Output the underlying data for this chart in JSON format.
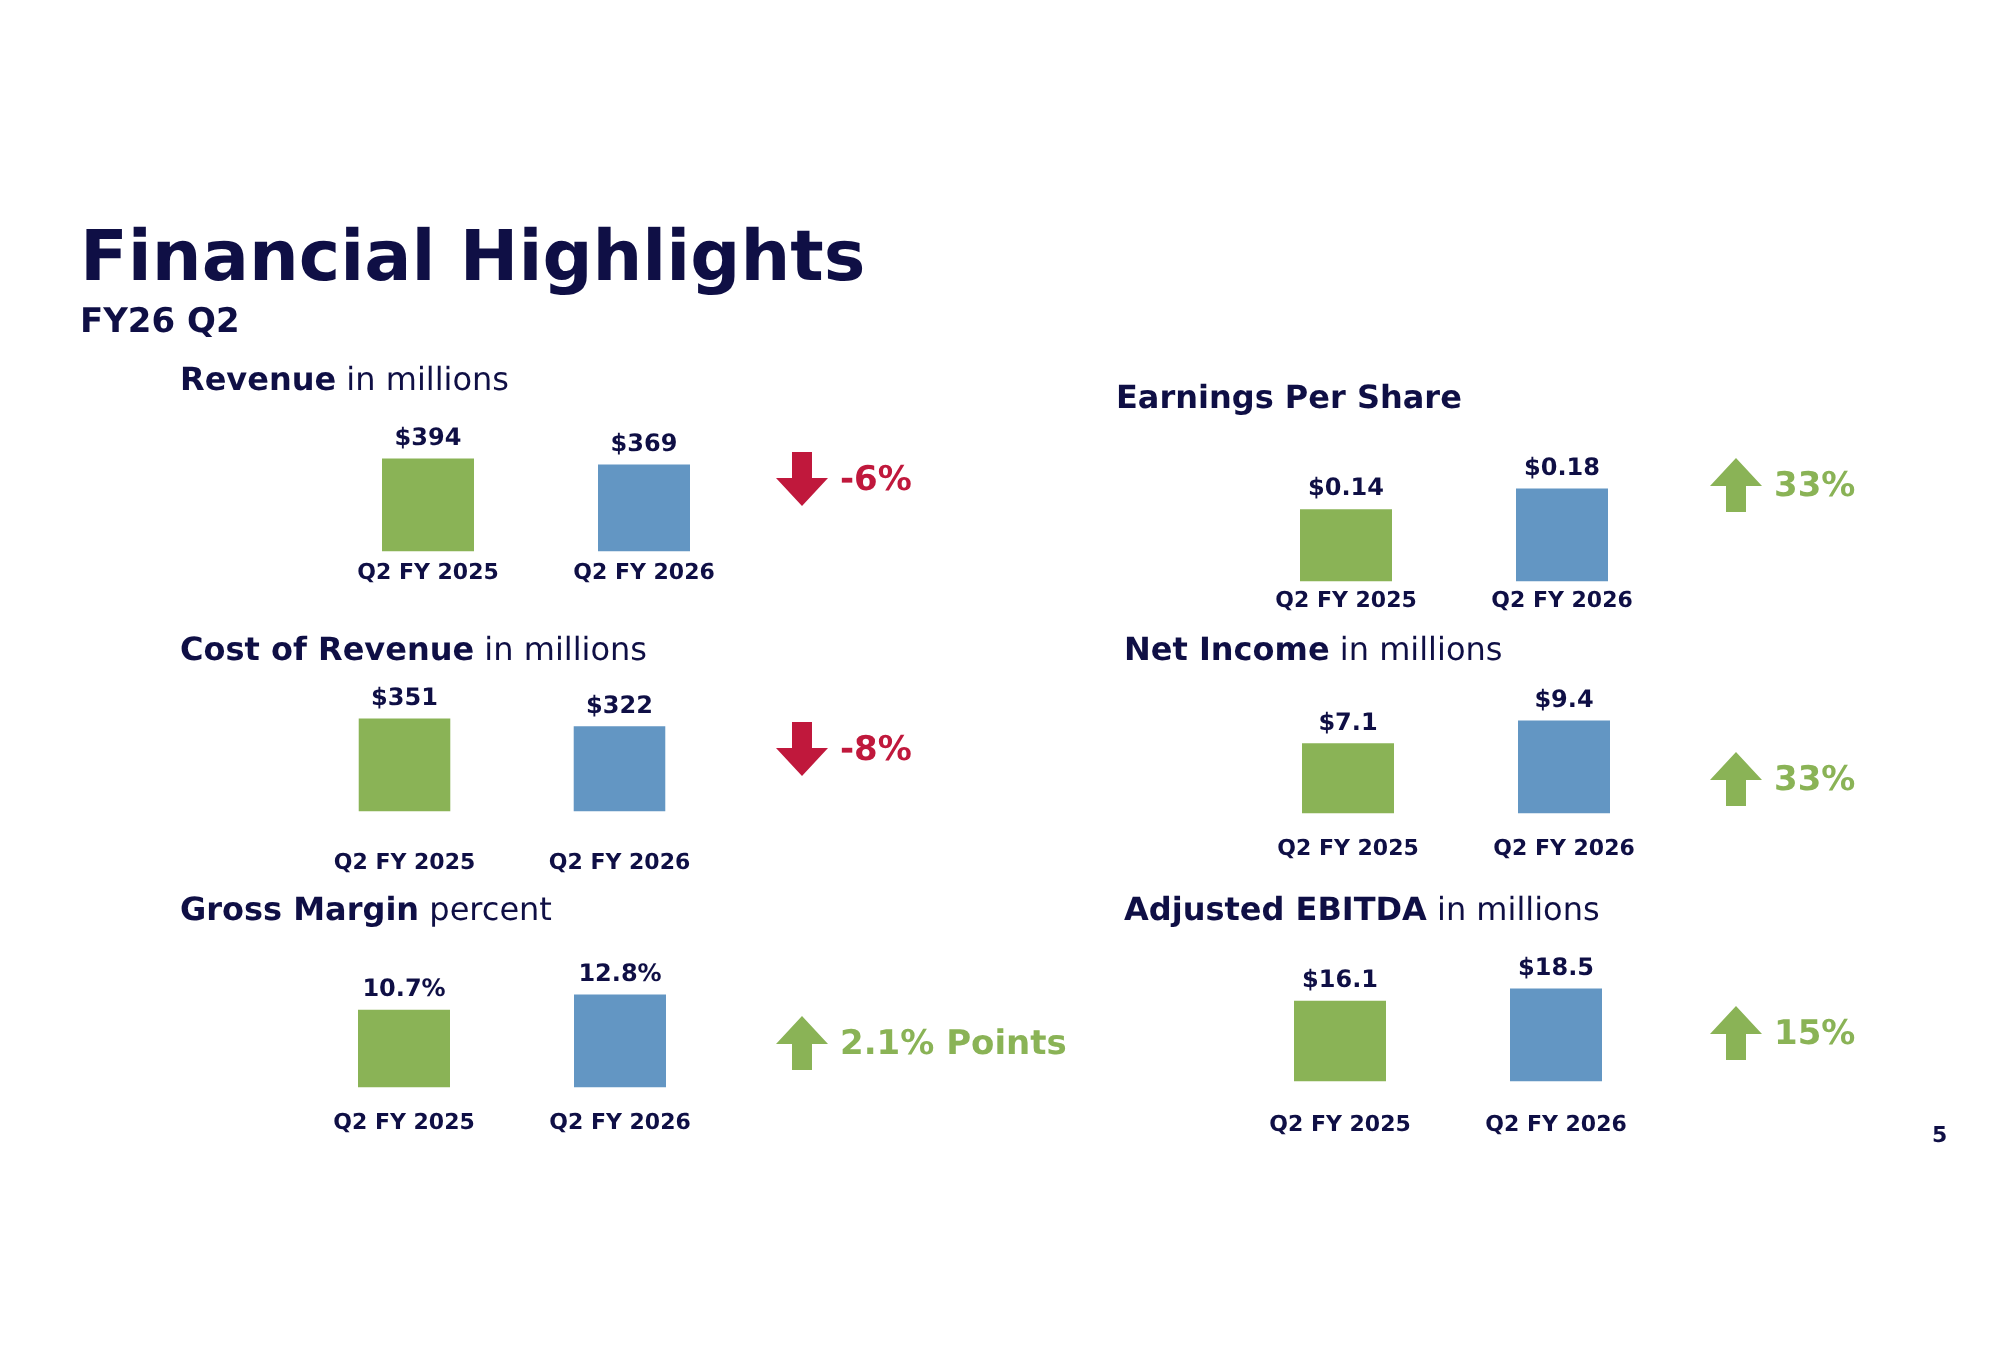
{
  "chart_data": [
    {
      "type": "other",
      "title": "Financial Highlights",
      "subtitle": "FY26 Q2",
      "annotations": [
        "5"
      ]
    },
    {
      "type": "bar",
      "title": "Revenue",
      "subtitle": "in millions",
      "categories": [
        "Q2 FY 2025",
        "Q2 FY 2026"
      ],
      "values": [
        394,
        369
      ],
      "value_labels": [
        "$394",
        "$369"
      ],
      "colors": [
        "#8ab356",
        "#6396c3"
      ],
      "annotations": [
        "-6%"
      ],
      "tick_labels": "x"
    },
    {
      "type": "bar",
      "title": "Earnings Per Share",
      "categories": [
        "Q2 FY 2025",
        "Q2 FY 2026"
      ],
      "values": [
        0.14,
        0.18
      ],
      "value_labels": [
        "$0.14",
        "$0.18"
      ],
      "colors": [
        "#8ab356",
        "#6396c3"
      ],
      "annotations": [
        "33%"
      ],
      "tick_labels": "x"
    },
    {
      "type": "bar",
      "title": "Cost of Revenue",
      "subtitle": "in millions",
      "categories": [
        "Q2 FY 2025",
        "Q2 FY 2026"
      ],
      "values": [
        351,
        322
      ],
      "value_labels": [
        "$351",
        "$322"
      ],
      "colors": [
        "#8ab356",
        "#6396c3"
      ],
      "annotations": [
        "-8%"
      ],
      "tick_labels": "x"
    },
    {
      "type": "bar",
      "title": "Net Income",
      "subtitle": "in millions",
      "categories": [
        "Q2 FY 2025",
        "Q2 FY 2026"
      ],
      "values": [
        7.1,
        9.4
      ],
      "value_labels": [
        "$7.1",
        "$9.4"
      ],
      "colors": [
        "#8ab356",
        "#6396c3"
      ],
      "annotations": [
        "33%"
      ],
      "tick_labels": "x"
    },
    {
      "type": "bar",
      "title": "Gross Margin",
      "subtitle": "percent",
      "categories": [
        "Q2 FY 2025",
        "Q2 FY 2026"
      ],
      "values": [
        10.7,
        12.8
      ],
      "value_labels": [
        "10.7%",
        "12.8%"
      ],
      "colors": [
        "#8ab356",
        "#6396c3"
      ],
      "annotations": [
        "2.1% Points"
      ],
      "tick_labels": "x"
    },
    {
      "type": "bar",
      "title": "Adjusted EBITDA",
      "subtitle": "in millions",
      "categories": [
        "Q2 FY 2025",
        "Q2 FY 2026"
      ],
      "values": [
        16.1,
        18.5
      ],
      "value_labels": [
        "$16.1",
        "$18.5"
      ],
      "colors": [
        "#8ab356",
        "#6396c3"
      ],
      "annotations": [
        "15%"
      ],
      "tick_labels": "x"
    }
  ]
}
